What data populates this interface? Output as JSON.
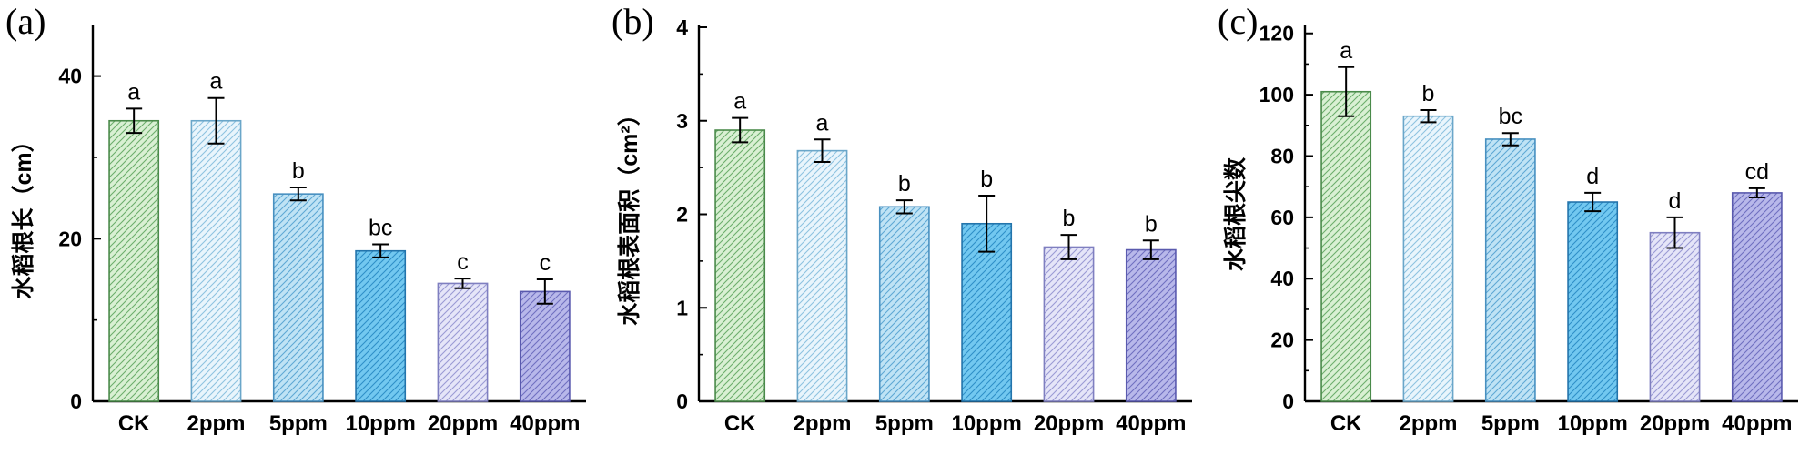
{
  "figure": {
    "background": "#ffffff",
    "description": "Three-panel bar chart figure of rice root traits under increasing ppm treatments"
  },
  "bar_styles": [
    {
      "name": "CK",
      "fill": "#d9f0d3",
      "hatch": "#6cae6c",
      "stroke": "#4a8a4a"
    },
    {
      "name": "2ppm",
      "fill": "#e9f5fc",
      "hatch": "#8ec3e0",
      "stroke": "#6aa6c9"
    },
    {
      "name": "5ppm",
      "fill": "#bfe3f5",
      "hatch": "#5ea8d4",
      "stroke": "#4890c0"
    },
    {
      "name": "10ppm",
      "fill": "#72c8f0",
      "hatch": "#2e8fc8",
      "stroke": "#2374ab"
    },
    {
      "name": "20ppm",
      "fill": "#e5e5f8",
      "hatch": "#9a9ad4",
      "stroke": "#7f7fc0"
    },
    {
      "name": "40ppm",
      "fill": "#b8b8ea",
      "hatch": "#6f6fc0",
      "stroke": "#5a5aae"
    }
  ],
  "chart_data": [
    {
      "type": "bar",
      "panel_label": "(a)",
      "title": "",
      "xlabel": "",
      "ylabel": "水稻根长（cm）",
      "ylim": [
        0,
        46
      ],
      "yticks": [
        0,
        20,
        40
      ],
      "minor_ticks": [
        10,
        30
      ],
      "categories": [
        "CK",
        "2ppm",
        "5ppm",
        "10ppm",
        "20ppm",
        "40ppm"
      ],
      "values": [
        34.5,
        34.5,
        25.5,
        18.5,
        14.5,
        13.5
      ],
      "errors": [
        1.5,
        2.8,
        0.8,
        0.8,
        0.6,
        1.5
      ],
      "sig_letters": [
        "a",
        "a",
        "b",
        "bc",
        "c",
        "c"
      ],
      "grid": false,
      "legend": "none"
    },
    {
      "type": "bar",
      "panel_label": "(b)",
      "title": "",
      "xlabel": "",
      "ylabel": "水稻根表面积（cm²）",
      "ylim": [
        0,
        4
      ],
      "yticks": [
        0,
        1,
        2,
        3,
        4
      ],
      "minor_ticks": [
        0.5,
        1.5,
        2.5,
        3.5
      ],
      "categories": [
        "CK",
        "2ppm",
        "5ppm",
        "10ppm",
        "20ppm",
        "40ppm"
      ],
      "values": [
        2.9,
        2.68,
        2.08,
        1.9,
        1.65,
        1.62
      ],
      "errors": [
        0.13,
        0.12,
        0.07,
        0.3,
        0.13,
        0.1
      ],
      "sig_letters": [
        "a",
        "a",
        "b",
        "b",
        "b",
        "b"
      ],
      "grid": false,
      "legend": "none"
    },
    {
      "type": "bar",
      "panel_label": "(c)",
      "title": "",
      "xlabel": "",
      "ylabel": "水稻根尖数",
      "ylim": [
        0,
        122
      ],
      "yticks": [
        0,
        20,
        40,
        60,
        80,
        100,
        120
      ],
      "minor_ticks": [
        10,
        30,
        50,
        70,
        90,
        110
      ],
      "categories": [
        "CK",
        "2ppm",
        "5ppm",
        "10ppm",
        "20ppm",
        "40ppm"
      ],
      "values": [
        101,
        93,
        85.5,
        65,
        55,
        68
      ],
      "errors": [
        8,
        2,
        2,
        3,
        5,
        1.5
      ],
      "sig_letters": [
        "a",
        "b",
        "bc",
        "d",
        "d",
        "cd"
      ],
      "grid": false,
      "legend": "none"
    }
  ]
}
